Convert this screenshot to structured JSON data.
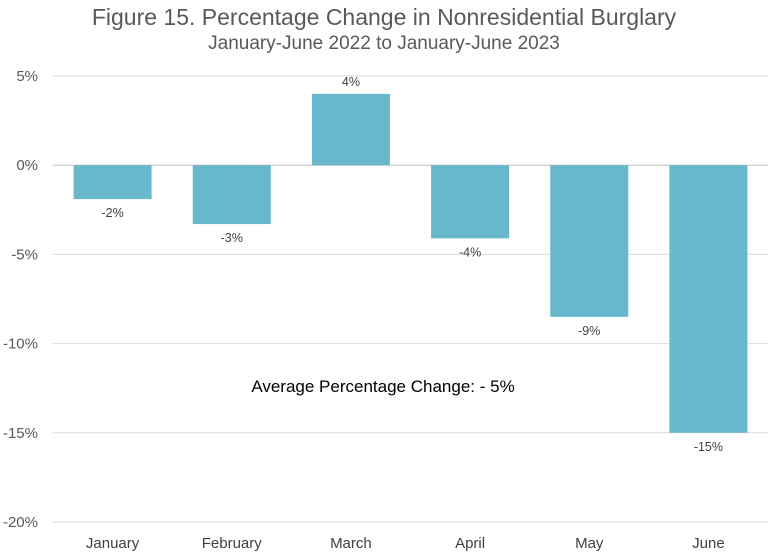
{
  "chart_data": {
    "type": "bar",
    "title": "Figure 15. Percentage Change in Nonresidential Burglary",
    "subtitle": "January-June 2022 to January-June 2023",
    "categories": [
      "January",
      "February",
      "March",
      "April",
      "May",
      "June"
    ],
    "values": [
      -1.9,
      -3.3,
      4.0,
      -4.1,
      -8.5,
      -15.0
    ],
    "data_labels": [
      "-2%",
      "-3%",
      "4%",
      "-4%",
      "-9%",
      "-15%"
    ],
    "ylim": [
      -20,
      5
    ],
    "yticks": [
      5,
      0,
      -5,
      -10,
      -15,
      -20
    ],
    "ytick_labels": [
      "5%",
      "0%",
      "-5%",
      "-10%",
      "-15%",
      "-20%"
    ],
    "xlabel": "",
    "ylabel": "",
    "grid": true,
    "annotation": "Average Percentage Change: - 5%",
    "colors": {
      "bar": "#67B8CC",
      "grid": "#D9D9D9",
      "axis": "#BFBFBF"
    }
  }
}
